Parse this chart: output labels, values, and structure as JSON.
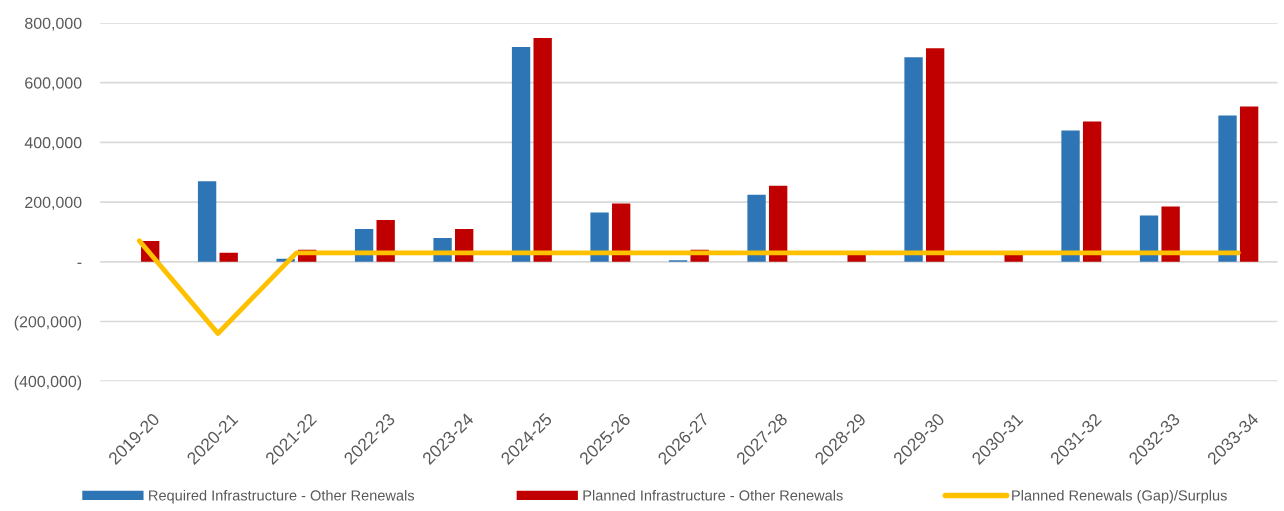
{
  "chart_data": {
    "type": "bar",
    "categories": [
      "2019-20",
      "2020-21",
      "2021-22",
      "2022-23",
      "2023-24",
      "2024-25",
      "2025-26",
      "2026-27",
      "2027-28",
      "2028-29",
      "2029-30",
      "2030-31",
      "2031-32",
      "2032-33",
      "2033-34"
    ],
    "series": [
      {
        "name": "Required Infrastructure - Other Renewals",
        "color": "#2e75b6",
        "values": [
          0,
          270000,
          10000,
          110000,
          80000,
          720000,
          165000,
          5000,
          225000,
          0,
          685000,
          0,
          440000,
          155000,
          490000
        ]
      },
      {
        "name": "Planned Infrastructure - Other Renewals",
        "color": "#c00000",
        "values": [
          70000,
          30000,
          40000,
          140000,
          110000,
          750000,
          195000,
          40000,
          255000,
          30000,
          715000,
          30000,
          470000,
          185000,
          520000
        ]
      },
      {
        "name": "Planned Renewals (Gap)/Surplus",
        "type": "line",
        "color": "#ffc000",
        "values": [
          70000,
          -240000,
          30000,
          30000,
          30000,
          30000,
          30000,
          30000,
          30000,
          30000,
          30000,
          30000,
          30000,
          30000,
          30000
        ]
      }
    ],
    "ylim": [
      -400000,
      800000
    ],
    "yticks": [
      {
        "value": -400000,
        "label": "(400,000)"
      },
      {
        "value": -200000,
        "label": "(200,000)"
      },
      {
        "value": 0,
        "label": "-"
      },
      {
        "value": 200000,
        "label": "200,000"
      },
      {
        "value": 400000,
        "label": "400,000"
      },
      {
        "value": 600000,
        "label": "600,000"
      },
      {
        "value": 800000,
        "label": "800,000"
      }
    ],
    "grid": "y",
    "legend": "bottom"
  }
}
